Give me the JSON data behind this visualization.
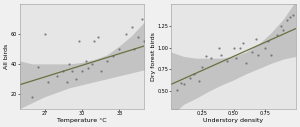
{
  "left": {
    "xlabel": "Temperature °C",
    "ylabel": "All birds",
    "xlim": [
      25,
      35
    ],
    "ylim": [
      10,
      80
    ],
    "xticks": [
      27,
      30,
      33
    ],
    "yticks": [
      20,
      40,
      60
    ],
    "scatter_x": [
      26.0,
      26.5,
      27.0,
      27.3,
      28.0,
      28.5,
      28.8,
      29.0,
      29.2,
      29.5,
      29.8,
      30.0,
      30.3,
      30.5,
      30.8,
      31.0,
      31.3,
      31.5,
      32.0,
      32.5,
      33.0,
      33.5,
      34.0,
      34.2,
      34.5,
      34.8,
      35.0
    ],
    "scatter_y": [
      18,
      38,
      60,
      28,
      32,
      35,
      28,
      40,
      35,
      30,
      55,
      35,
      42,
      37,
      40,
      55,
      58,
      35,
      42,
      45,
      50,
      60,
      65,
      50,
      58,
      70,
      55
    ],
    "line_x": [
      25,
      35
    ],
    "line_y": [
      26,
      52
    ],
    "ci_x": [
      25,
      26,
      27,
      28,
      29,
      30,
      31,
      32,
      33,
      34,
      35
    ],
    "ci_lower": [
      10,
      14,
      18,
      21,
      24,
      26,
      28,
      30,
      32,
      34,
      36
    ],
    "ci_upper": [
      42,
      40,
      40,
      40,
      40,
      41,
      43,
      46,
      52,
      59,
      68
    ]
  },
  "right": {
    "xlabel": "Understory density",
    "ylabel": "Dry forest birds",
    "xlim": [
      0.0,
      1.0
    ],
    "ylim": [
      0.3,
      1.5
    ],
    "xticks": [
      0.25,
      0.5,
      0.75
    ],
    "yticks": [
      0.5,
      0.75,
      1.0,
      1.25
    ],
    "scatter_x": [
      0.05,
      0.08,
      0.1,
      0.15,
      0.18,
      0.22,
      0.25,
      0.28,
      0.32,
      0.38,
      0.4,
      0.45,
      0.5,
      0.52,
      0.55,
      0.58,
      0.6,
      0.65,
      0.68,
      0.7,
      0.75,
      0.78,
      0.8,
      0.85,
      0.88,
      0.9,
      0.93,
      0.95,
      0.98
    ],
    "scatter_y": [
      0.52,
      0.6,
      0.58,
      0.65,
      0.7,
      0.62,
      0.78,
      0.9,
      0.88,
      1.0,
      0.92,
      0.85,
      1.0,
      0.88,
      1.0,
      1.05,
      0.82,
      0.95,
      1.1,
      0.92,
      1.0,
      1.08,
      0.92,
      1.15,
      1.25,
      1.2,
      1.32,
      1.35,
      1.38
    ],
    "line_x": [
      0.0,
      1.0
    ],
    "line_y": [
      0.58,
      1.22
    ],
    "ci_x": [
      0.0,
      0.1,
      0.2,
      0.3,
      0.4,
      0.5,
      0.6,
      0.7,
      0.8,
      0.9,
      1.0
    ],
    "ci_lower": [
      0.22,
      0.35,
      0.42,
      0.5,
      0.57,
      0.63,
      0.7,
      0.76,
      0.82,
      0.87,
      0.9
    ],
    "ci_upper": [
      0.95,
      0.9,
      0.88,
      0.88,
      0.88,
      0.9,
      0.95,
      1.04,
      1.17,
      1.33,
      1.54
    ]
  },
  "line_color": "#6b7040",
  "ci_color": "#c0c0c0",
  "scatter_color": "#666666",
  "bg_color": "#e6e6e6",
  "fig_color": "#f0f0f0",
  "scatter_size": 2.5,
  "scatter_alpha": 0.8,
  "label_fontsize": 4.5,
  "tick_fontsize": 3.5
}
